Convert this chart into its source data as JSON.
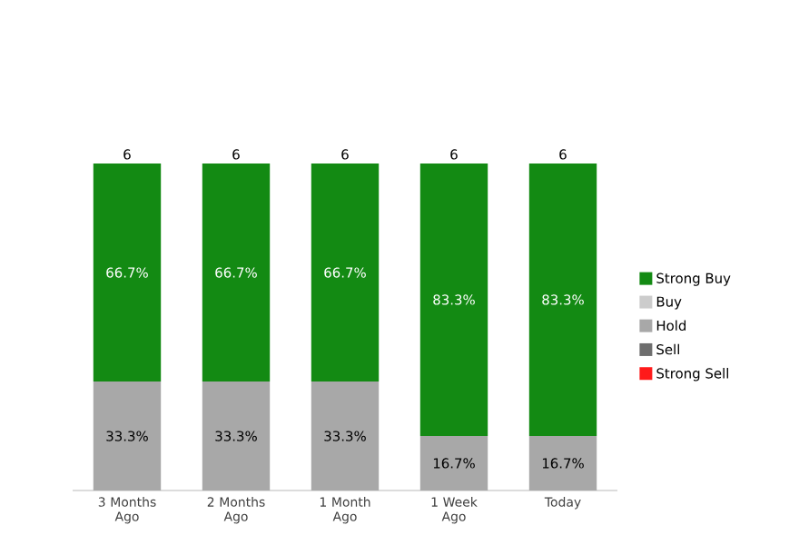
{
  "chart_data": {
    "type": "bar",
    "stacked": true,
    "legend": "right",
    "categories": [
      "3 Months Ago",
      "2 Months Ago",
      "1 Month Ago",
      "1 Week Ago",
      "Today"
    ],
    "series": [
      {
        "name": "Strong Sell",
        "color": "#ff1a1a",
        "values": [
          null,
          null,
          null,
          null,
          null
        ]
      },
      {
        "name": "Sell",
        "color": "#6e6e6e",
        "values": [
          null,
          null,
          null,
          null,
          null
        ]
      },
      {
        "name": "Hold",
        "color": "#a8a8a8",
        "values": [
          33.3,
          33.3,
          33.3,
          16.7,
          16.7
        ],
        "value_labels": [
          "33.3%",
          "33.3%",
          "33.3%",
          "16.7%",
          "16.7%"
        ]
      },
      {
        "name": "Buy",
        "color": "#cccccc",
        "values": [
          null,
          null,
          null,
          null,
          null
        ]
      },
      {
        "name": "Strong Buy",
        "color": "#138a13",
        "values": [
          66.7,
          66.7,
          66.7,
          83.3,
          83.3
        ],
        "value_labels": [
          "66.7%",
          "66.7%",
          "66.7%",
          "83.3%",
          "83.3%"
        ]
      }
    ],
    "annotations": [
      {
        "text": "6",
        "x": "3 Months Ago",
        "y": 100
      },
      {
        "text": "6",
        "x": "2 Months Ago",
        "y": 100
      },
      {
        "text": "6",
        "x": "1 Month Ago",
        "y": 100
      },
      {
        "text": "6",
        "x": "1 Week Ago",
        "y": 100
      },
      {
        "text": "6",
        "x": "Today",
        "y": 100
      }
    ]
  }
}
